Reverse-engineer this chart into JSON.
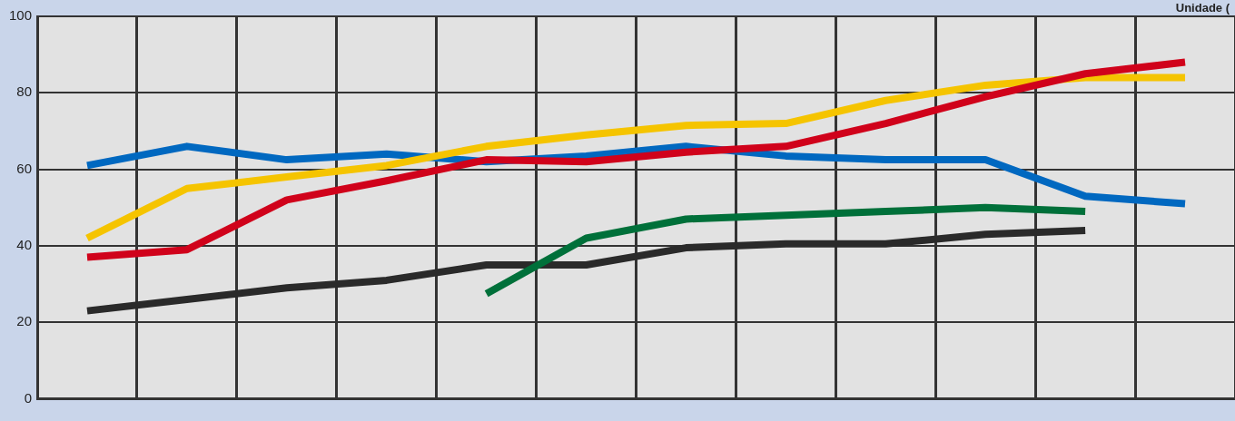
{
  "chart_data": {
    "type": "line",
    "ylabel": "Unidade (",
    "categories": [
      null,
      null,
      null,
      null,
      null,
      null,
      null,
      null,
      null,
      null,
      null,
      null
    ],
    "series": [
      {
        "color": "#d0021b",
        "values": [
          37,
          39,
          52,
          57,
          62.5,
          62,
          64.5,
          66,
          72,
          79,
          85,
          88
        ]
      },
      {
        "color": "#f5c400",
        "values": [
          42,
          55,
          58,
          61,
          66,
          69,
          71.5,
          72,
          78,
          82,
          84,
          84
        ]
      },
      {
        "color": "#0068c0",
        "values": [
          61,
          66,
          62.5,
          64,
          62,
          63.5,
          66,
          63.5,
          62.5,
          62.5,
          53,
          51
        ]
      },
      {
        "color": "#00703a",
        "values": [
          null,
          null,
          null,
          null,
          27.5,
          42,
          47,
          48,
          49,
          50,
          49,
          null
        ]
      },
      {
        "color": "#2a2a2a",
        "values": [
          23,
          26,
          29,
          31,
          35,
          35,
          39.5,
          40.5,
          40.5,
          43,
          44,
          null
        ]
      }
    ],
    "ylim": [
      0,
      100
    ],
    "yticks": [
      0,
      20,
      40,
      60,
      80,
      100
    ],
    "grid": true,
    "legend": false,
    "marker": "none",
    "line_style": "solid"
  }
}
